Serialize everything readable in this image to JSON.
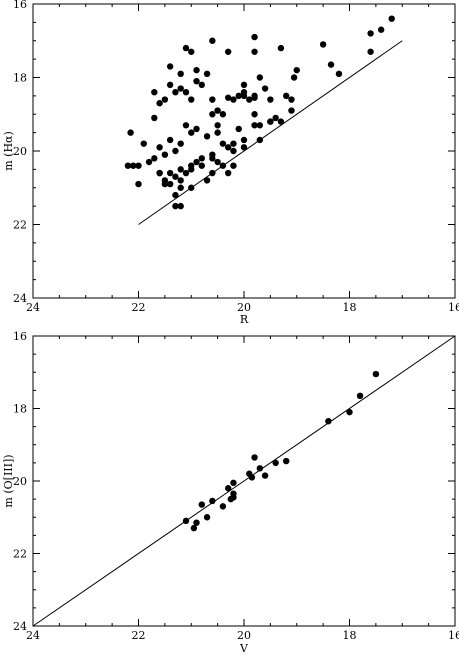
{
  "chart_data": [
    {
      "type": "scatter",
      "xlabel": "R",
      "ylabel": "m (Hα)",
      "xlim": [
        24,
        16
      ],
      "ylim": [
        24,
        16
      ],
      "xticks": [
        24,
        22,
        20,
        18,
        16
      ],
      "yticks": [
        16,
        18,
        20,
        22,
        24
      ],
      "line": [
        [
          22.0,
          22.0
        ],
        [
          17.0,
          17.0
        ]
      ],
      "points": [
        [
          17.2,
          16.4
        ],
        [
          17.4,
          16.7
        ],
        [
          17.6,
          16.8
        ],
        [
          17.6,
          17.3
        ],
        [
          18.2,
          17.9
        ],
        [
          18.35,
          17.65
        ],
        [
          18.5,
          17.1
        ],
        [
          19.0,
          17.8
        ],
        [
          19.05,
          18.0
        ],
        [
          19.3,
          17.2
        ],
        [
          19.8,
          16.9
        ],
        [
          19.8,
          17.3
        ],
        [
          20.3,
          17.3
        ],
        [
          20.6,
          17.0
        ],
        [
          21.0,
          17.3
        ],
        [
          21.1,
          17.2
        ],
        [
          21.4,
          17.7
        ],
        [
          19.1,
          18.6
        ],
        [
          19.1,
          18.9
        ],
        [
          19.2,
          18.5
        ],
        [
          19.3,
          19.2
        ],
        [
          19.4,
          19.1
        ],
        [
          19.5,
          18.6
        ],
        [
          19.5,
          19.2
        ],
        [
          19.6,
          18.3
        ],
        [
          19.7,
          18.0
        ],
        [
          19.7,
          19.3
        ],
        [
          19.8,
          18.5
        ],
        [
          19.8,
          18.55
        ],
        [
          19.8,
          19.0
        ],
        [
          19.9,
          18.6
        ],
        [
          20.0,
          18.2
        ],
        [
          20.0,
          18.4
        ],
        [
          20.0,
          18.5
        ],
        [
          20.1,
          18.5
        ],
        [
          20.2,
          18.6
        ],
        [
          20.3,
          18.55
        ],
        [
          20.4,
          19.0
        ],
        [
          20.5,
          18.9
        ],
        [
          20.5,
          19.3
        ],
        [
          20.6,
          18.6
        ],
        [
          20.6,
          19.0
        ],
        [
          20.7,
          17.9
        ],
        [
          20.8,
          18.2
        ],
        [
          20.9,
          17.8
        ],
        [
          20.9,
          18.1
        ],
        [
          21.0,
          18.6
        ],
        [
          21.1,
          18.4
        ],
        [
          21.2,
          18.3
        ],
        [
          21.2,
          17.9
        ],
        [
          21.3,
          18.4
        ],
        [
          21.4,
          18.2
        ],
        [
          21.5,
          18.6
        ],
        [
          21.7,
          18.4
        ],
        [
          21.6,
          18.7
        ],
        [
          19.5,
          19.2
        ],
        [
          19.7,
          19.7
        ],
        [
          19.8,
          19.3
        ],
        [
          20.0,
          19.7
        ],
        [
          20.0,
          19.9
        ],
        [
          20.1,
          19.4
        ],
        [
          20.2,
          19.8
        ],
        [
          20.2,
          20.0
        ],
        [
          20.3,
          19.9
        ],
        [
          20.4,
          19.8
        ],
        [
          20.5,
          19.5
        ],
        [
          20.6,
          20.1
        ],
        [
          20.6,
          20.6
        ],
        [
          20.7,
          19.6
        ],
        [
          20.8,
          20.2
        ],
        [
          20.9,
          20.3
        ],
        [
          20.9,
          19.4
        ],
        [
          21.0,
          19.5
        ],
        [
          21.0,
          20.4
        ],
        [
          21.1,
          19.3
        ],
        [
          21.2,
          20.5
        ],
        [
          21.2,
          19.8
        ],
        [
          21.3,
          20.0
        ],
        [
          21.3,
          20.7
        ],
        [
          21.4,
          19.7
        ],
        [
          21.5,
          20.1
        ],
        [
          21.5,
          20.9
        ],
        [
          21.6,
          19.9
        ],
        [
          21.6,
          20.6
        ],
        [
          21.7,
          19.1
        ],
        [
          21.8,
          20.3
        ],
        [
          21.9,
          19.8
        ],
        [
          22.0,
          20.4
        ],
        [
          22.1,
          20.4
        ],
        [
          22.15,
          19.5
        ],
        [
          22.2,
          20.4
        ],
        [
          22.0,
          20.9
        ],
        [
          21.7,
          20.2
        ],
        [
          20.2,
          20.4
        ],
        [
          20.3,
          20.6
        ],
        [
          20.4,
          20.4
        ],
        [
          20.5,
          20.3
        ],
        [
          20.6,
          20.2
        ],
        [
          20.7,
          20.8
        ],
        [
          20.8,
          20.4
        ],
        [
          21.0,
          21.0
        ],
        [
          21.0,
          20.5
        ],
        [
          21.1,
          20.6
        ],
        [
          21.2,
          20.8
        ],
        [
          21.2,
          21.5
        ],
        [
          21.3,
          21.2
        ],
        [
          21.3,
          21.5
        ],
        [
          21.4,
          20.9
        ],
        [
          21.4,
          20.6
        ],
        [
          21.5,
          20.8
        ],
        [
          21.6,
          20.6
        ],
        [
          21.2,
          21.0
        ]
      ]
    },
    {
      "type": "scatter",
      "xlabel": "V",
      "ylabel": "m (O[III])",
      "xlim": [
        24,
        16
      ],
      "ylim": [
        24,
        16
      ],
      "xticks": [
        24,
        22,
        20,
        18,
        16
      ],
      "yticks": [
        16,
        18,
        20,
        22,
        24
      ],
      "line": [
        [
          24,
          24
        ],
        [
          16,
          16
        ]
      ],
      "points": [
        [
          17.5,
          17.05
        ],
        [
          17.8,
          17.65
        ],
        [
          18.0,
          18.1
        ],
        [
          18.4,
          18.35
        ],
        [
          19.2,
          19.45
        ],
        [
          19.4,
          19.5
        ],
        [
          19.6,
          19.85
        ],
        [
          19.7,
          19.65
        ],
        [
          19.8,
          19.35
        ],
        [
          19.85,
          19.9
        ],
        [
          19.9,
          19.8
        ],
        [
          20.2,
          20.05
        ],
        [
          20.2,
          20.45
        ],
        [
          20.2,
          20.35
        ],
        [
          20.25,
          20.5
        ],
        [
          20.3,
          20.2
        ],
        [
          20.4,
          20.7
        ],
        [
          20.6,
          20.55
        ],
        [
          20.7,
          21.0
        ],
        [
          20.8,
          20.65
        ],
        [
          20.9,
          21.15
        ],
        [
          20.95,
          21.3
        ],
        [
          21.1,
          21.1
        ]
      ]
    }
  ]
}
